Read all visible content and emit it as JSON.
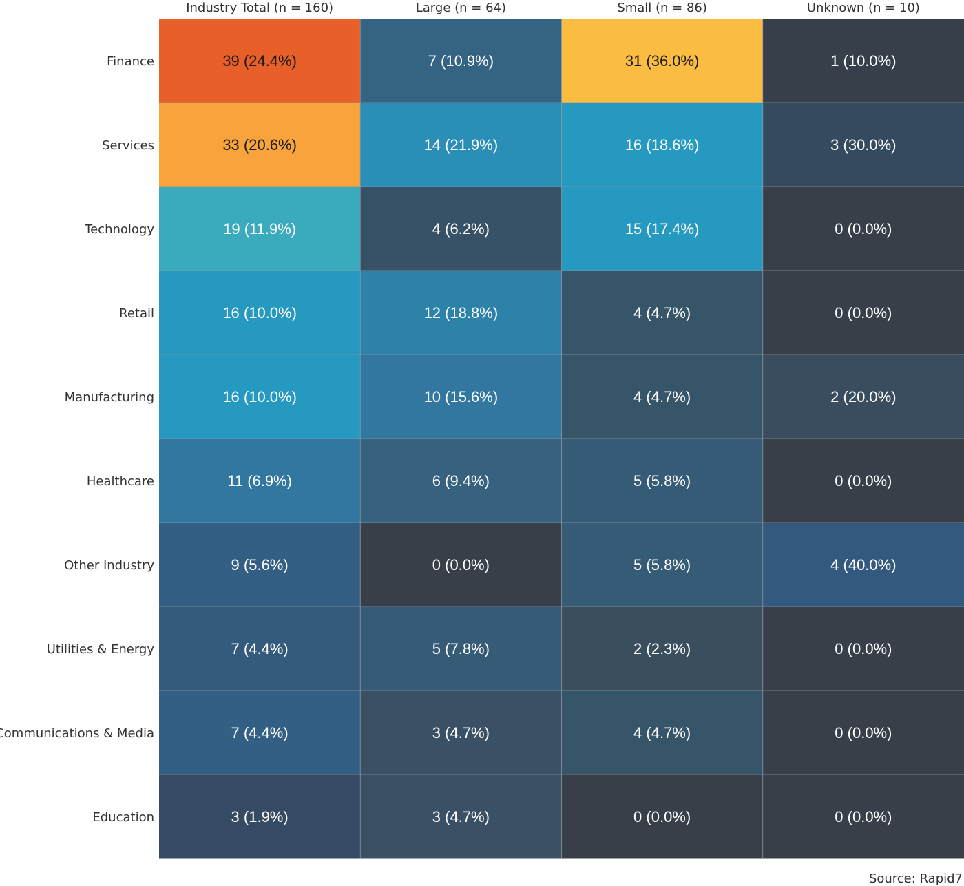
{
  "chart_data": {
    "type": "heatmap",
    "title": "",
    "xlabel": "",
    "ylabel": "",
    "columns": [
      "Industry Total (n = 160)",
      "Large (n = 64)",
      "Small (n = 86)",
      "Unknown (n = 10)"
    ],
    "rows": [
      "Finance",
      "Services",
      "Technology",
      "Retail",
      "Manufacturing",
      "Healthcare",
      "Other Industry",
      "Utilities & Energy",
      "Communications & Media",
      "Education"
    ],
    "counts": [
      [
        39,
        7,
        31,
        1
      ],
      [
        33,
        14,
        16,
        3
      ],
      [
        19,
        4,
        15,
        0
      ],
      [
        16,
        12,
        4,
        0
      ],
      [
        16,
        10,
        4,
        2
      ],
      [
        11,
        6,
        5,
        0
      ],
      [
        9,
        0,
        5,
        4
      ],
      [
        7,
        5,
        2,
        0
      ],
      [
        7,
        3,
        4,
        0
      ],
      [
        3,
        3,
        0,
        0
      ]
    ],
    "labels": [
      [
        "39 (24.4%)",
        "7 (10.9%)",
        "31 (36.0%)",
        "1 (10.0%)"
      ],
      [
        "33 (20.6%)",
        "14 (21.9%)",
        "16 (18.6%)",
        "3 (30.0%)"
      ],
      [
        "19 (11.9%)",
        "4 (6.2%)",
        "15 (17.4%)",
        "0 (0.0%)"
      ],
      [
        "16 (10.0%)",
        "12 (18.8%)",
        "4 (4.7%)",
        "0 (0.0%)"
      ],
      [
        "16 (10.0%)",
        "10 (15.6%)",
        "4 (4.7%)",
        "2 (20.0%)"
      ],
      [
        "11 (6.9%)",
        "6 (9.4%)",
        "5 (5.8%)",
        "0 (0.0%)"
      ],
      [
        "9 (5.6%)",
        "0 (0.0%)",
        "5 (5.8%)",
        "4 (40.0%)"
      ],
      [
        "7 (4.4%)",
        "5 (7.8%)",
        "2 (2.3%)",
        "0 (0.0%)"
      ],
      [
        "7 (4.4%)",
        "3 (4.7%)",
        "4 (4.7%)",
        "0 (0.0%)"
      ],
      [
        "3 (1.9%)",
        "3 (4.7%)",
        "0 (0.0%)",
        "0 (0.0%)"
      ]
    ],
    "cell_colors": [
      [
        "#e95f2a",
        "#346383",
        "#fbbd41",
        "#373f4b"
      ],
      [
        "#f8a33c",
        "#2a8eb6",
        "#2599bf",
        "#344a5f"
      ],
      [
        "#3aabbc",
        "#375166",
        "#2599bf",
        "#383f48"
      ],
      [
        "#2599bf",
        "#2c82a8",
        "#375569",
        "#383f48"
      ],
      [
        "#2599bf",
        "#32779f",
        "#375569",
        "#3a4d5f"
      ],
      [
        "#31779f",
        "#366280",
        "#365b77",
        "#383f48"
      ],
      [
        "#345f84",
        "#383f48",
        "#365b77",
        "#335a7e"
      ],
      [
        "#345a7e",
        "#365b77",
        "#3a4e5e",
        "#383f48"
      ],
      [
        "#345f84",
        "#3a5065",
        "#375569",
        "#383f48"
      ],
      [
        "#354b63",
        "#3a5065",
        "#383f48",
        "#383f48"
      ]
    ],
    "text_colors": [
      [
        "#1a1a1a",
        "#ffffff",
        "#1a1a1a",
        "#ffffff"
      ],
      [
        "#1a1a1a",
        "#ffffff",
        "#ffffff",
        "#ffffff"
      ],
      [
        "#ffffff",
        "#ffffff",
        "#ffffff",
        "#ffffff"
      ],
      [
        "#ffffff",
        "#ffffff",
        "#ffffff",
        "#ffffff"
      ],
      [
        "#ffffff",
        "#ffffff",
        "#ffffff",
        "#ffffff"
      ],
      [
        "#ffffff",
        "#ffffff",
        "#ffffff",
        "#ffffff"
      ],
      [
        "#ffffff",
        "#ffffff",
        "#ffffff",
        "#ffffff"
      ],
      [
        "#ffffff",
        "#ffffff",
        "#ffffff",
        "#ffffff"
      ],
      [
        "#ffffff",
        "#ffffff",
        "#ffffff",
        "#ffffff"
      ],
      [
        "#ffffff",
        "#ffffff",
        "#ffffff",
        "#ffffff"
      ]
    ],
    "grid_line_color": "#8e97a1",
    "source": "Source: Rapid7"
  }
}
